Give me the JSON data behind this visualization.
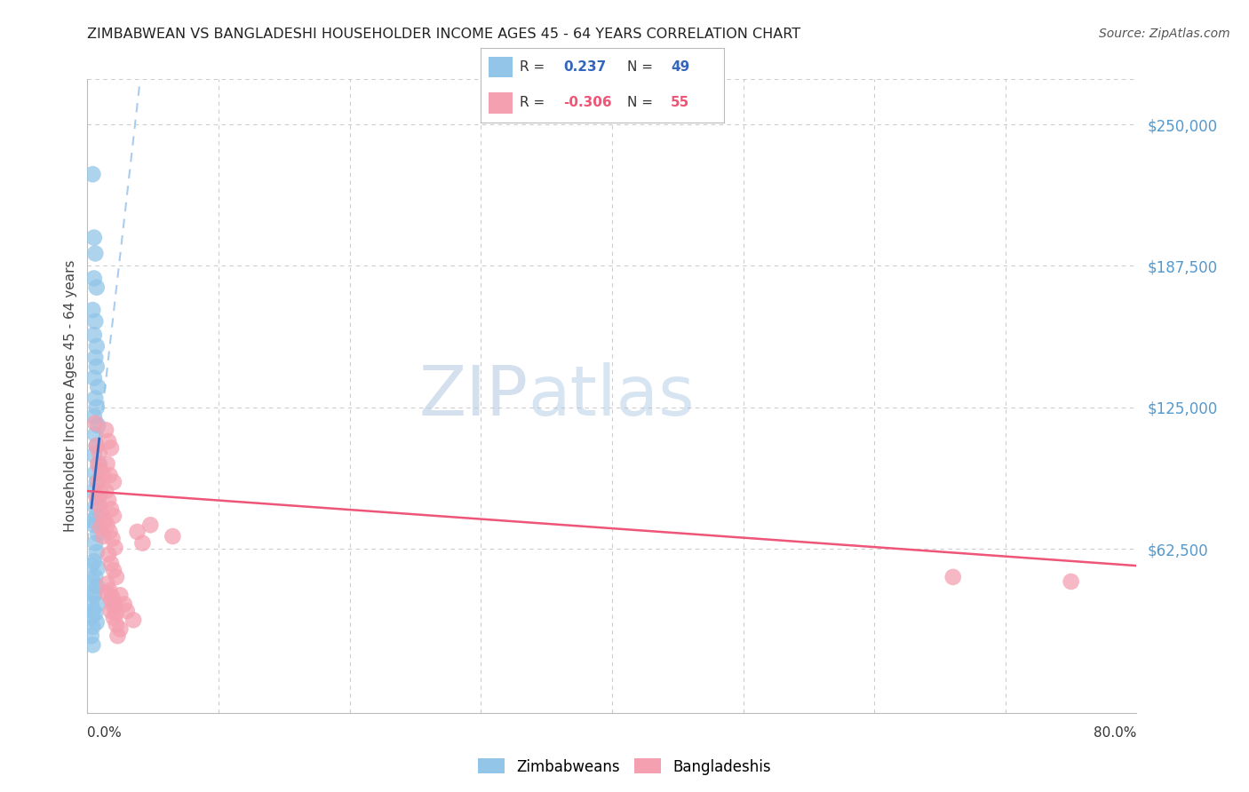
{
  "title": "ZIMBABWEAN VS BANGLADESHI HOUSEHOLDER INCOME AGES 45 - 64 YEARS CORRELATION CHART",
  "source": "Source: ZipAtlas.com",
  "ylabel": "Householder Income Ages 45 - 64 years",
  "right_ytick_labels": [
    "$250,000",
    "$187,500",
    "$125,000",
    "$62,500"
  ],
  "right_ytick_values": [
    250000,
    187500,
    125000,
    62500
  ],
  "ylim": [
    -10000,
    270000
  ],
  "xlim": [
    0.0,
    0.8
  ],
  "watermark_zip": "ZIP",
  "watermark_atlas": "atlas",
  "legend_zim_r": "0.237",
  "legend_zim_n": "49",
  "legend_ban_r": "-0.306",
  "legend_ban_n": "55",
  "zim_color": "#92C5E8",
  "ban_color": "#F4A0B0",
  "zim_line_color": "#3366BB",
  "ban_line_color": "#EE5577",
  "dashed_line_color": "#AACCEE",
  "background_color": "#FFFFFF",
  "grid_color": "#CCCCCC",
  "zim_scatter": [
    [
      0.004,
      228000
    ],
    [
      0.005,
      200000
    ],
    [
      0.006,
      193000
    ],
    [
      0.005,
      182000
    ],
    [
      0.007,
      178000
    ],
    [
      0.004,
      168000
    ],
    [
      0.006,
      163000
    ],
    [
      0.005,
      157000
    ],
    [
      0.007,
      152000
    ],
    [
      0.006,
      147000
    ],
    [
      0.007,
      143000
    ],
    [
      0.005,
      138000
    ],
    [
      0.008,
      134000
    ],
    [
      0.006,
      129000
    ],
    [
      0.007,
      125000
    ],
    [
      0.005,
      121000
    ],
    [
      0.008,
      117000
    ],
    [
      0.006,
      113000
    ],
    [
      0.007,
      108000
    ],
    [
      0.005,
      104000
    ],
    [
      0.009,
      100000
    ],
    [
      0.006,
      96000
    ],
    [
      0.007,
      92000
    ],
    [
      0.005,
      88000
    ],
    [
      0.008,
      85000
    ],
    [
      0.006,
      81000
    ],
    [
      0.007,
      77000
    ],
    [
      0.005,
      73000
    ],
    [
      0.008,
      69000
    ],
    [
      0.006,
      65000
    ],
    [
      0.007,
      61000
    ],
    [
      0.005,
      57000
    ],
    [
      0.008,
      54000
    ],
    [
      0.006,
      50000
    ],
    [
      0.007,
      46000
    ],
    [
      0.005,
      42000
    ],
    [
      0.008,
      38000
    ],
    [
      0.006,
      34000
    ],
    [
      0.007,
      30000
    ],
    [
      0.004,
      75000
    ],
    [
      0.003,
      55000
    ],
    [
      0.004,
      48000
    ],
    [
      0.005,
      43000
    ],
    [
      0.003,
      38000
    ],
    [
      0.004,
      35000
    ],
    [
      0.003,
      32000
    ],
    [
      0.004,
      28000
    ],
    [
      0.003,
      24000
    ],
    [
      0.004,
      20000
    ]
  ],
  "ban_scatter": [
    [
      0.006,
      118000
    ],
    [
      0.007,
      108000
    ],
    [
      0.009,
      105000
    ],
    [
      0.008,
      100000
    ],
    [
      0.01,
      97000
    ],
    [
      0.012,
      95000
    ],
    [
      0.008,
      92000
    ],
    [
      0.01,
      88000
    ],
    [
      0.007,
      85000
    ],
    [
      0.009,
      82000
    ],
    [
      0.011,
      78000
    ],
    [
      0.013,
      75000
    ],
    [
      0.01,
      72000
    ],
    [
      0.012,
      68000
    ],
    [
      0.014,
      115000
    ],
    [
      0.016,
      110000
    ],
    [
      0.018,
      107000
    ],
    [
      0.015,
      100000
    ],
    [
      0.017,
      95000
    ],
    [
      0.02,
      92000
    ],
    [
      0.014,
      88000
    ],
    [
      0.016,
      84000
    ],
    [
      0.018,
      80000
    ],
    [
      0.02,
      77000
    ],
    [
      0.015,
      73000
    ],
    [
      0.017,
      70000
    ],
    [
      0.019,
      67000
    ],
    [
      0.021,
      63000
    ],
    [
      0.016,
      60000
    ],
    [
      0.018,
      56000
    ],
    [
      0.02,
      53000
    ],
    [
      0.022,
      50000
    ],
    [
      0.015,
      47000
    ],
    [
      0.017,
      44000
    ],
    [
      0.019,
      41000
    ],
    [
      0.021,
      38000
    ],
    [
      0.018,
      35000
    ],
    [
      0.02,
      32000
    ],
    [
      0.022,
      29000
    ],
    [
      0.025,
      27000
    ],
    [
      0.023,
      24000
    ],
    [
      0.015,
      43000
    ],
    [
      0.018,
      40000
    ],
    [
      0.02,
      37000
    ],
    [
      0.022,
      34000
    ],
    [
      0.025,
      42000
    ],
    [
      0.028,
      38000
    ],
    [
      0.03,
      35000
    ],
    [
      0.035,
      31000
    ],
    [
      0.038,
      70000
    ],
    [
      0.042,
      65000
    ],
    [
      0.048,
      73000
    ],
    [
      0.065,
      68000
    ],
    [
      0.66,
      50000
    ],
    [
      0.75,
      48000
    ]
  ]
}
